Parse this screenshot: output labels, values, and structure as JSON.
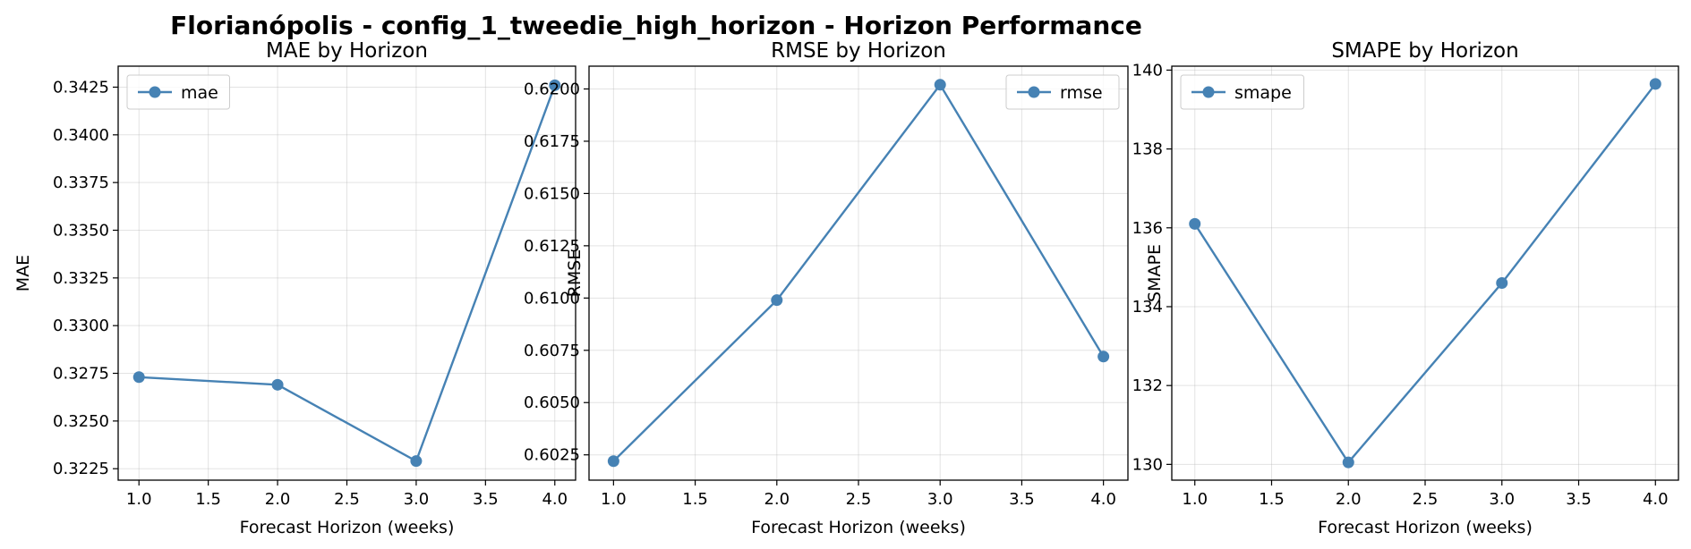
{
  "figure": {
    "suptitle": "Florianópolis - config_1_tweedie_high_horizon - Horizon Performance"
  },
  "colors": {
    "series": "#4682b4"
  },
  "chart_data": [
    {
      "type": "line",
      "title": "MAE by Horizon",
      "xlabel": "Forecast Horizon (weeks)",
      "ylabel": "MAE",
      "legend_position": "top-left",
      "grid": true,
      "x": [
        1,
        2,
        3,
        4
      ],
      "series": [
        {
          "name": "mae",
          "values": [
            0.3273,
            0.3269,
            0.3229,
            0.3426
          ]
        }
      ],
      "xlim": [
        0.85,
        4.15
      ],
      "ylim": [
        0.3219,
        0.3436
      ],
      "xticks": [
        1.0,
        1.5,
        2.0,
        2.5,
        3.0,
        3.5,
        4.0
      ],
      "xtick_labels": [
        "1.0",
        "1.5",
        "2.0",
        "2.5",
        "3.0",
        "3.5",
        "4.0"
      ],
      "yticks": [
        0.3225,
        0.325,
        0.3275,
        0.33,
        0.3325,
        0.335,
        0.3375,
        0.34,
        0.3425
      ],
      "ytick_labels": [
        "0.3225",
        "0.3250",
        "0.3275",
        "0.3300",
        "0.3325",
        "0.3350",
        "0.3375",
        "0.3400",
        "0.3425"
      ]
    },
    {
      "type": "line",
      "title": "RMSE by Horizon",
      "xlabel": "Forecast Horizon (weeks)",
      "ylabel": "RMSE",
      "legend_position": "top-right",
      "grid": true,
      "x": [
        1,
        2,
        3,
        4
      ],
      "series": [
        {
          "name": "rmse",
          "values": [
            0.6022,
            0.6099,
            0.6202,
            0.6072
          ]
        }
      ],
      "xlim": [
        0.85,
        4.15
      ],
      "ylim": [
        0.60129,
        0.62109
      ],
      "xticks": [
        1.0,
        1.5,
        2.0,
        2.5,
        3.0,
        3.5,
        4.0
      ],
      "xtick_labels": [
        "1.0",
        "1.5",
        "2.0",
        "2.5",
        "3.0",
        "3.5",
        "4.0"
      ],
      "yticks": [
        0.6025,
        0.605,
        0.6075,
        0.61,
        0.6125,
        0.615,
        0.6175,
        0.62
      ],
      "ytick_labels": [
        "0.6025",
        "0.6050",
        "0.6075",
        "0.6100",
        "0.6125",
        "0.6150",
        "0.6175",
        "0.6200"
      ]
    },
    {
      "type": "line",
      "title": "SMAPE by Horizon",
      "xlabel": "Forecast Horizon (weeks)",
      "ylabel": "SMAPE",
      "legend_position": "top-left",
      "grid": true,
      "x": [
        1,
        2,
        3,
        4
      ],
      "series": [
        {
          "name": "smape",
          "values": [
            136.1,
            130.05,
            134.6,
            139.65
          ]
        }
      ],
      "xlim": [
        0.85,
        4.15
      ],
      "ylim": [
        129.6,
        140.1
      ],
      "xticks": [
        1.0,
        1.5,
        2.0,
        2.5,
        3.0,
        3.5,
        4.0
      ],
      "xtick_labels": [
        "1.0",
        "1.5",
        "2.0",
        "2.5",
        "3.0",
        "3.5",
        "4.0"
      ],
      "yticks": [
        130,
        132,
        134,
        136,
        138,
        140
      ],
      "ytick_labels": [
        "130",
        "132",
        "134",
        "136",
        "138",
        "140"
      ]
    }
  ]
}
